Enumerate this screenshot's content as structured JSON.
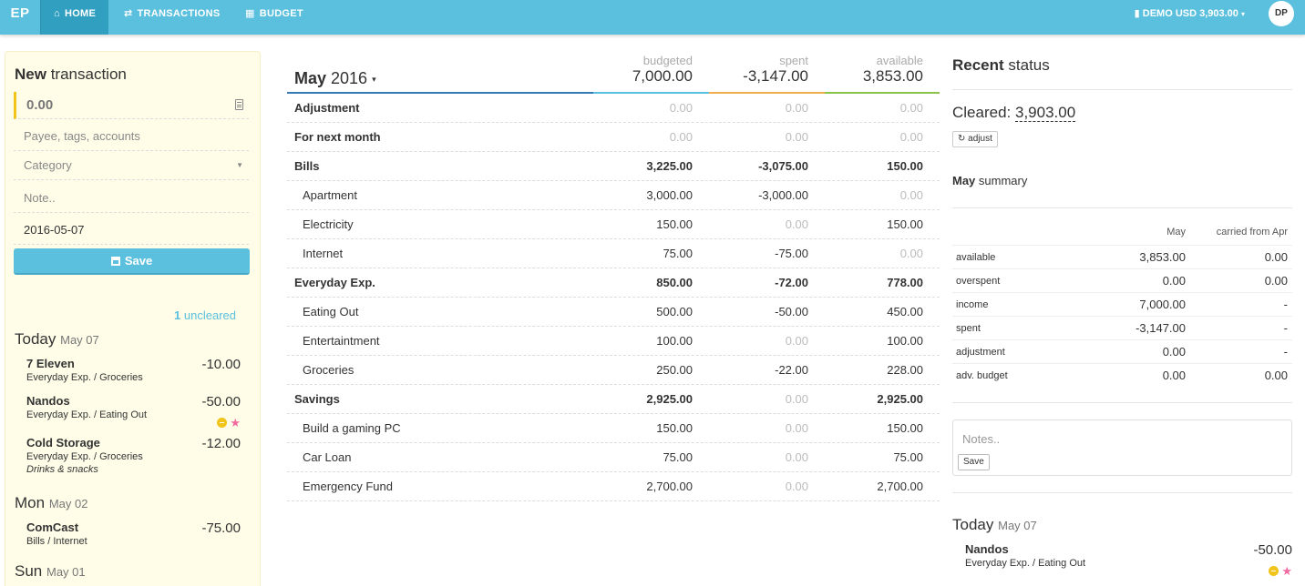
{
  "nav": {
    "brand": "EP",
    "items": [
      {
        "label": "HOME",
        "icon": "home-icon",
        "active": true
      },
      {
        "label": "TRANSACTIONS",
        "icon": "transfer-icon",
        "active": false
      },
      {
        "label": "BUDGET",
        "icon": "grid-icon",
        "active": false
      }
    ],
    "account": "DEMO USD 3,903.00",
    "account_caret": "▾",
    "avatar": "DP"
  },
  "new_tx": {
    "title_bold": "New",
    "title_rest": " transaction",
    "amount_placeholder": "0.00",
    "payee_placeholder": "Payee, tags, accounts",
    "category_placeholder": "Category",
    "note_placeholder": "Note..",
    "date": "2016-05-07",
    "save_label": "Save"
  },
  "uncleared": {
    "count": "1",
    "label": " uncleared"
  },
  "left_days": [
    {
      "day": "Today",
      "date": "May 07"
    },
    {
      "day": "Mon",
      "date": "May 02"
    },
    {
      "day": "Sun",
      "date": "May 01"
    }
  ],
  "left_transactions": [
    {
      "payee": "7 Eleven",
      "category": "Everyday Exp. / Groceries",
      "amount": "-10.00"
    },
    {
      "payee": "Nandos",
      "category": "Everyday Exp. / Eating Out",
      "amount": "-50.00"
    },
    {
      "payee": "Cold Storage",
      "category": "Everyday Exp. / Groceries",
      "note": "Drinks & snacks",
      "amount": "-12.00"
    },
    {
      "payee": "ComCast",
      "category": "Bills / Internet",
      "amount": "-75.00"
    }
  ],
  "budget": {
    "month_bold": "May",
    "month_year": " 2016",
    "caret": "▾",
    "headers": {
      "budgeted_label": "budgeted",
      "budgeted_value": "7,000.00",
      "spent_label": "spent",
      "spent_value": "-3,147.00",
      "available_label": "available",
      "available_value": "3,853.00"
    },
    "colors": {
      "budgeted": "#5bc0de",
      "spent": "#f0ad4e",
      "available": "#8bc34a",
      "title_line": "#337ab7"
    },
    "rows": [
      {
        "name": "Adjustment",
        "type": "group",
        "budgeted": "0.00",
        "spent": "0.00",
        "available": "0.00"
      },
      {
        "name": "For next month",
        "type": "group",
        "budgeted": "0.00",
        "spent": "0.00",
        "available": "0.00"
      },
      {
        "name": "Bills",
        "type": "group",
        "budgeted": "3,225.00",
        "spent": "-3,075.00",
        "available": "150.00"
      },
      {
        "name": "Apartment",
        "type": "sub",
        "budgeted": "3,000.00",
        "spent": "-3,000.00",
        "available": "0.00"
      },
      {
        "name": "Electricity",
        "type": "sub",
        "budgeted": "150.00",
        "spent": "0.00",
        "available": "150.00"
      },
      {
        "name": "Internet",
        "type": "sub",
        "budgeted": "75.00",
        "spent": "-75.00",
        "available": "0.00"
      },
      {
        "name": "Everyday Exp.",
        "type": "group",
        "budgeted": "850.00",
        "spent": "-72.00",
        "available": "778.00"
      },
      {
        "name": "Eating Out",
        "type": "sub",
        "budgeted": "500.00",
        "spent": "-50.00",
        "available": "450.00"
      },
      {
        "name": "Entertaintment",
        "type": "sub",
        "budgeted": "100.00",
        "spent": "0.00",
        "available": "100.00"
      },
      {
        "name": "Groceries",
        "type": "sub",
        "budgeted": "250.00",
        "spent": "-22.00",
        "available": "228.00"
      },
      {
        "name": "Savings",
        "type": "group",
        "budgeted": "2,925.00",
        "spent": "0.00",
        "available": "2,925.00"
      },
      {
        "name": "Build a gaming PC",
        "type": "sub",
        "budgeted": "150.00",
        "spent": "0.00",
        "available": "150.00"
      },
      {
        "name": "Car Loan",
        "type": "sub",
        "budgeted": "75.00",
        "spent": "0.00",
        "available": "75.00"
      },
      {
        "name": "Emergency Fund",
        "type": "sub",
        "budgeted": "2,700.00",
        "spent": "0.00",
        "available": "2,700.00"
      }
    ]
  },
  "recent": {
    "title_bold": "Recent",
    "title_rest": " status",
    "cleared_label": "Cleared: ",
    "cleared_value": "3,903.00",
    "adjust_label": "adjust",
    "summary_bold": "May",
    "summary_rest": " summary",
    "col1": "May",
    "col2": "carried from Apr",
    "rows": [
      {
        "k": "available",
        "v1": "3,853.00",
        "v2": "0.00"
      },
      {
        "k": "overspent",
        "v1": "0.00",
        "v2": "0.00"
      },
      {
        "k": "income",
        "v1": "7,000.00",
        "v2": "-"
      },
      {
        "k": "spent",
        "v1": "-3,147.00",
        "v2": "-"
      },
      {
        "k": "adjustment",
        "v1": "0.00",
        "v2": "-"
      },
      {
        "k": "adv. budget",
        "v1": "0.00",
        "v2": "0.00"
      }
    ],
    "notes_placeholder": "Notes..",
    "notes_save": "Save",
    "day": "Today",
    "day_date": "May 07",
    "tx": {
      "payee": "Nandos",
      "category": "Everyday Exp. / Eating Out",
      "amount": "-50.00"
    }
  }
}
